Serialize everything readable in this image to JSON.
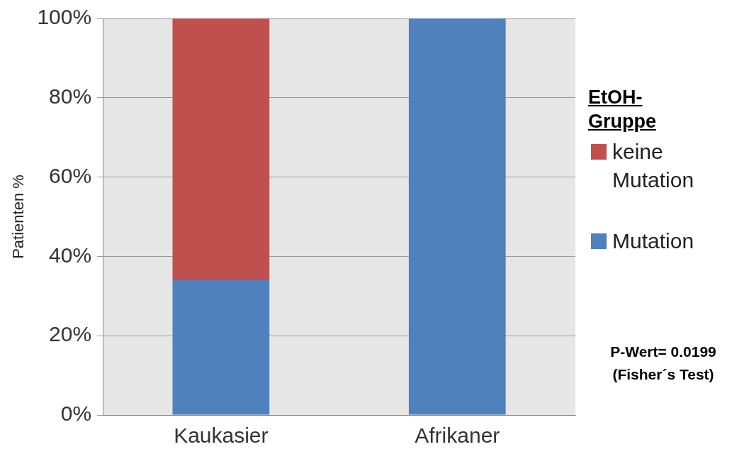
{
  "chart_data": {
    "type": "bar",
    "stacked": true,
    "ylabel": "Patienten %",
    "legend_title": "EtOH-Gruppe",
    "legend": "right",
    "grid": "y",
    "categories": [
      "Kaukasier",
      "Afrikaner"
    ],
    "series": [
      {
        "name": "Mutation",
        "color": "#4f81bd",
        "values": [
          34,
          100
        ]
      },
      {
        "name": "keine Mutation",
        "color": "#c0504d",
        "values": [
          66,
          0
        ]
      }
    ],
    "ylim": [
      0,
      100
    ],
    "yticks": [
      {
        "value": 0,
        "label": "0%"
      },
      {
        "value": 20,
        "label": "20%"
      },
      {
        "value": 40,
        "label": "40%"
      },
      {
        "value": 60,
        "label": "60%"
      },
      {
        "value": 80,
        "label": "80%"
      },
      {
        "value": 100,
        "label": "100%"
      }
    ],
    "annotations": [
      "P-Wert= 0.0199",
      "(Fisher´s Test)"
    ]
  }
}
